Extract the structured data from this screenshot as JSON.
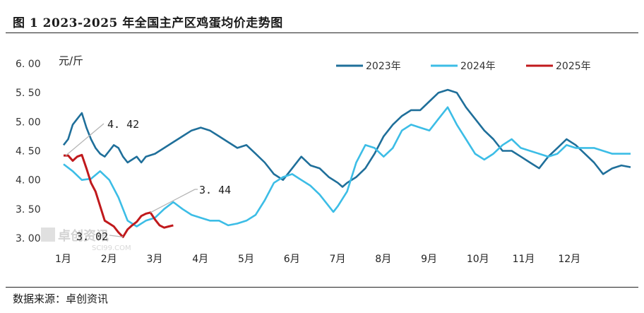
{
  "header": {
    "title": "图 1 2023-2025 年全国主产区鸡蛋均价走势图"
  },
  "footer": {
    "source": "数据来源：卓创资讯"
  },
  "watermark": {
    "text": "卓创资讯",
    "sub": "SCI99.COM"
  },
  "chart_data": {
    "type": "line",
    "unit_label": "元/斤",
    "ylim": [
      3.0,
      6.0
    ],
    "y_ticks": [
      "3.00",
      "3.50",
      "4.00",
      "4.50",
      "5.00",
      "5.50",
      "6.00"
    ],
    "x_ticks": [
      "1月",
      "2月",
      "3月",
      "4月",
      "5月",
      "6月",
      "7月",
      "8月",
      "9月",
      "10月",
      "11月",
      "12月"
    ],
    "legend_position": "top-right",
    "series": [
      {
        "name": "2023年",
        "color": "#1f6f9a",
        "values": [
          [
            1.0,
            4.6
          ],
          [
            1.1,
            4.7
          ],
          [
            1.2,
            4.95
          ],
          [
            1.3,
            5.05
          ],
          [
            1.4,
            5.15
          ],
          [
            1.5,
            4.9
          ],
          [
            1.6,
            4.7
          ],
          [
            1.7,
            4.55
          ],
          [
            1.8,
            4.45
          ],
          [
            1.9,
            4.4
          ],
          [
            2.0,
            4.5
          ],
          [
            2.1,
            4.6
          ],
          [
            2.2,
            4.55
          ],
          [
            2.3,
            4.4
          ],
          [
            2.4,
            4.3
          ],
          [
            2.5,
            4.35
          ],
          [
            2.6,
            4.4
          ],
          [
            2.7,
            4.3
          ],
          [
            2.8,
            4.4
          ],
          [
            3.0,
            4.45
          ],
          [
            3.2,
            4.55
          ],
          [
            3.4,
            4.65
          ],
          [
            3.6,
            4.75
          ],
          [
            3.8,
            4.85
          ],
          [
            4.0,
            4.9
          ],
          [
            4.2,
            4.85
          ],
          [
            4.4,
            4.75
          ],
          [
            4.6,
            4.65
          ],
          [
            4.8,
            4.55
          ],
          [
            5.0,
            4.6
          ],
          [
            5.2,
            4.45
          ],
          [
            5.4,
            4.3
          ],
          [
            5.6,
            4.1
          ],
          [
            5.8,
            4.0
          ],
          [
            6.0,
            4.2
          ],
          [
            6.2,
            4.4
          ],
          [
            6.4,
            4.25
          ],
          [
            6.6,
            4.2
          ],
          [
            6.8,
            4.05
          ],
          [
            7.0,
            3.95
          ],
          [
            7.1,
            3.88
          ],
          [
            7.2,
            3.95
          ],
          [
            7.4,
            4.05
          ],
          [
            7.6,
            4.2
          ],
          [
            7.8,
            4.45
          ],
          [
            8.0,
            4.75
          ],
          [
            8.2,
            4.95
          ],
          [
            8.4,
            5.1
          ],
          [
            8.6,
            5.2
          ],
          [
            8.8,
            5.2
          ],
          [
            9.0,
            5.35
          ],
          [
            9.2,
            5.5
          ],
          [
            9.4,
            5.55
          ],
          [
            9.6,
            5.5
          ],
          [
            9.8,
            5.25
          ],
          [
            10.0,
            5.05
          ],
          [
            10.2,
            4.85
          ],
          [
            10.4,
            4.7
          ],
          [
            10.6,
            4.5
          ],
          [
            10.8,
            4.5
          ],
          [
            11.0,
            4.4
          ],
          [
            11.2,
            4.3
          ],
          [
            11.4,
            4.2
          ],
          [
            11.6,
            4.4
          ],
          [
            11.8,
            4.55
          ],
          [
            12.0,
            4.7
          ],
          [
            12.2,
            4.6
          ],
          [
            12.4,
            4.45
          ],
          [
            12.6,
            4.3
          ],
          [
            12.8,
            4.1
          ],
          [
            13.0,
            4.2
          ],
          [
            13.2,
            4.25
          ],
          [
            13.4,
            4.22
          ]
        ]
      },
      {
        "name": "2024年",
        "color": "#3cbde6",
        "values": [
          [
            1.0,
            4.27
          ],
          [
            1.2,
            4.15
          ],
          [
            1.4,
            4.0
          ],
          [
            1.6,
            4.02
          ],
          [
            1.8,
            4.15
          ],
          [
            2.0,
            4.0
          ],
          [
            2.2,
            3.7
          ],
          [
            2.4,
            3.3
          ],
          [
            2.6,
            3.2
          ],
          [
            2.8,
            3.3
          ],
          [
            3.0,
            3.35
          ],
          [
            3.2,
            3.5
          ],
          [
            3.4,
            3.62
          ],
          [
            3.6,
            3.5
          ],
          [
            3.8,
            3.4
          ],
          [
            4.0,
            3.35
          ],
          [
            4.2,
            3.3
          ],
          [
            4.4,
            3.3
          ],
          [
            4.6,
            3.22
          ],
          [
            4.8,
            3.25
          ],
          [
            5.0,
            3.3
          ],
          [
            5.2,
            3.4
          ],
          [
            5.4,
            3.65
          ],
          [
            5.6,
            3.95
          ],
          [
            5.8,
            4.05
          ],
          [
            6.0,
            4.1
          ],
          [
            6.2,
            4.0
          ],
          [
            6.4,
            3.9
          ],
          [
            6.6,
            3.75
          ],
          [
            6.8,
            3.55
          ],
          [
            6.9,
            3.45
          ],
          [
            7.0,
            3.55
          ],
          [
            7.2,
            3.8
          ],
          [
            7.4,
            4.3
          ],
          [
            7.6,
            4.6
          ],
          [
            7.8,
            4.55
          ],
          [
            8.0,
            4.4
          ],
          [
            8.2,
            4.55
          ],
          [
            8.4,
            4.85
          ],
          [
            8.6,
            4.95
          ],
          [
            8.8,
            4.9
          ],
          [
            9.0,
            4.85
          ],
          [
            9.2,
            5.05
          ],
          [
            9.4,
            5.25
          ],
          [
            9.6,
            4.95
          ],
          [
            9.8,
            4.7
          ],
          [
            10.0,
            4.45
          ],
          [
            10.2,
            4.35
          ],
          [
            10.4,
            4.45
          ],
          [
            10.6,
            4.6
          ],
          [
            10.8,
            4.7
          ],
          [
            11.0,
            4.55
          ],
          [
            11.2,
            4.5
          ],
          [
            11.4,
            4.45
          ],
          [
            11.6,
            4.4
          ],
          [
            11.8,
            4.45
          ],
          [
            12.0,
            4.6
          ],
          [
            12.2,
            4.55
          ],
          [
            12.4,
            4.55
          ],
          [
            12.6,
            4.55
          ],
          [
            12.8,
            4.5
          ],
          [
            13.0,
            4.45
          ],
          [
            13.2,
            4.45
          ],
          [
            13.4,
            4.45
          ]
        ]
      },
      {
        "name": "2025年",
        "color": "#c0191c",
        "values": [
          [
            1.0,
            4.42
          ],
          [
            1.1,
            4.42
          ],
          [
            1.2,
            4.33
          ],
          [
            1.3,
            4.4
          ],
          [
            1.4,
            4.43
          ],
          [
            1.5,
            4.2
          ],
          [
            1.6,
            3.95
          ],
          [
            1.7,
            3.8
          ],
          [
            1.8,
            3.55
          ],
          [
            1.9,
            3.3
          ],
          [
            2.0,
            3.25
          ],
          [
            2.1,
            3.2
          ],
          [
            2.2,
            3.1
          ],
          [
            2.3,
            3.02
          ],
          [
            2.4,
            3.15
          ],
          [
            2.5,
            3.22
          ],
          [
            2.6,
            3.28
          ],
          [
            2.7,
            3.38
          ],
          [
            2.8,
            3.42
          ],
          [
            2.9,
            3.44
          ],
          [
            3.0,
            3.32
          ],
          [
            3.1,
            3.22
          ],
          [
            3.2,
            3.18
          ],
          [
            3.3,
            3.2
          ],
          [
            3.4,
            3.22
          ]
        ]
      }
    ],
    "annotations": [
      "4.42",
      "3.44",
      "3.02"
    ]
  }
}
